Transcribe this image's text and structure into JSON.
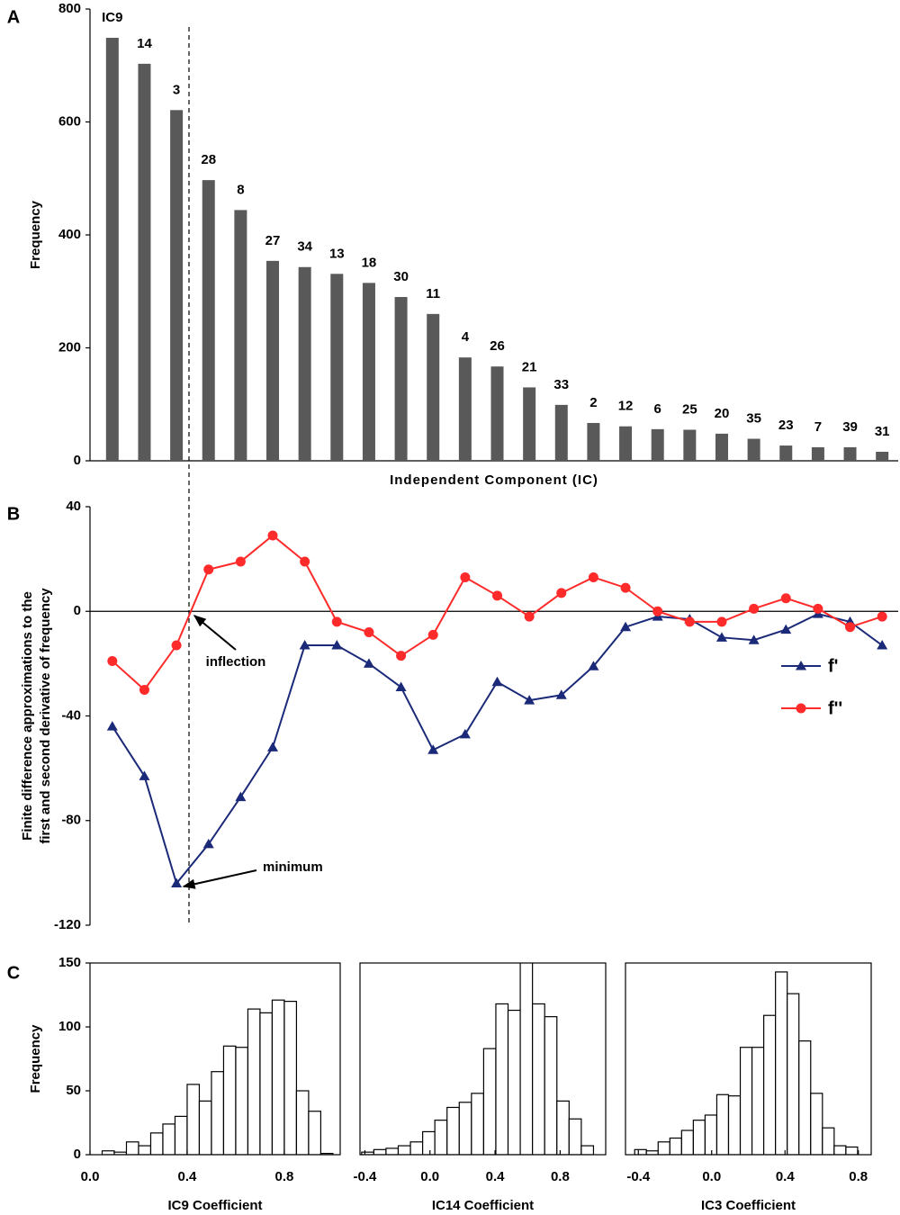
{
  "chart_data": [
    {
      "panel": "A",
      "type": "bar",
      "categories": [
        "IC9",
        "14",
        "3",
        "28",
        "8",
        "27",
        "34",
        "13",
        "18",
        "30",
        "11",
        "4",
        "26",
        "21",
        "33",
        "2",
        "12",
        "6",
        "25",
        "20",
        "35",
        "23",
        "7",
        "39",
        "31"
      ],
      "values": [
        749,
        703,
        621,
        497,
        444,
        354,
        343,
        331,
        315,
        290,
        260,
        183,
        167,
        130,
        99,
        67,
        61,
        56,
        55,
        48,
        39,
        27,
        24,
        24,
        16
      ],
      "color": "#595959",
      "ylim": [
        0,
        800
      ],
      "yticks": [
        0,
        200,
        400,
        600,
        800
      ],
      "ylabel": "Frequency",
      "xlabel": "Independent Component (IC)"
    },
    {
      "panel": "B",
      "type": "line",
      "ylabel": [
        "Finite difference  approximations to the",
        "first and second  derivative of frequency"
      ],
      "series": [
        {
          "name": "f'",
          "color": "#1b2a78",
          "marker": "triangle",
          "values": [
            -44,
            -63,
            -104,
            -89,
            -71,
            -52,
            -13,
            -13,
            -20,
            -29,
            -53,
            -47,
            -27,
            -34,
            -32,
            -21,
            -6,
            -2,
            -3,
            -10,
            -11,
            -7,
            -1,
            -4,
            -13
          ]
        },
        {
          "name": "f''",
          "color": "#ff2a2a",
          "marker": "circle",
          "values": [
            -19,
            -30,
            -13,
            16,
            19,
            29,
            19,
            -4,
            -8,
            -17,
            -9,
            13,
            6,
            -2,
            7,
            13,
            9,
            0,
            -4,
            -4,
            1,
            5,
            1,
            -6,
            -2
          ]
        }
      ],
      "ylim": [
        -120,
        40
      ],
      "yticks": [
        -120,
        -80,
        -40,
        0,
        40
      ],
      "legend": "right",
      "annotations": [
        "inflection",
        "minimum"
      ]
    },
    {
      "panel": "C",
      "type": "histogram",
      "bins": [
        0.05,
        0.1,
        0.15,
        0.2,
        0.25,
        0.3,
        0.35,
        0.4,
        0.45,
        0.5,
        0.55,
        0.6,
        0.65,
        0.7,
        0.75,
        0.8,
        0.85,
        0.9,
        0.95,
        1.0
      ],
      "values": [
        3,
        2,
        10,
        7,
        17,
        24,
        30,
        55,
        42,
        65,
        85,
        84,
        114,
        111,
        121,
        120,
        50,
        34,
        1
      ],
      "xlim": [
        0,
        1.03
      ],
      "xticks": [
        {
          "value": 0,
          "label": "0.0"
        },
        0.4,
        0.8
      ],
      "ylim": [
        0,
        150
      ],
      "yticks": [
        0,
        50,
        100,
        150
      ],
      "ylabel": "Frequency",
      "xlabel": "IC9 Coefficient"
    },
    {
      "type": "histogram",
      "bins": [
        -0.42,
        -0.345,
        -0.27,
        -0.195,
        -0.12,
        -0.045,
        0.03,
        0.105,
        0.18,
        0.255,
        0.33,
        0.405,
        0.48,
        0.555,
        0.63,
        0.705,
        0.78,
        0.855,
        0.93,
        1.005
      ],
      "values": [
        2,
        4,
        5,
        7,
        10,
        18,
        27,
        37,
        41,
        48,
        83,
        118,
        113,
        155,
        118,
        108,
        42,
        28,
        7
      ],
      "xlim": [
        -0.43,
        1.08
      ],
      "xticks": [
        -0.4,
        {
          "value": 0,
          "label": "0.0"
        },
        0.4,
        0.8
      ],
      "ylim": [
        0,
        150
      ],
      "xlabel": "IC14 Coefficient"
    },
    {
      "type": "histogram",
      "bins": [
        -0.42,
        -0.356,
        -0.292,
        -0.228,
        -0.164,
        -0.1,
        -0.036,
        0.028,
        0.092,
        0.156,
        0.22,
        0.284,
        0.348,
        0.412,
        0.476,
        0.54,
        0.604,
        0.668,
        0.732,
        0.796
      ],
      "values": [
        4,
        3,
        10,
        13,
        19,
        27,
        31,
        47,
        46,
        84,
        84,
        109,
        143,
        126,
        89,
        48,
        21,
        7,
        6
      ],
      "xlim": [
        -0.47,
        0.87
      ],
      "xticks": [
        -0.4,
        {
          "value": 0,
          "label": "0.0"
        },
        0.4,
        0.8
      ],
      "ylim": [
        0,
        150
      ],
      "xlabel": "IC3 Coefficient"
    }
  ]
}
